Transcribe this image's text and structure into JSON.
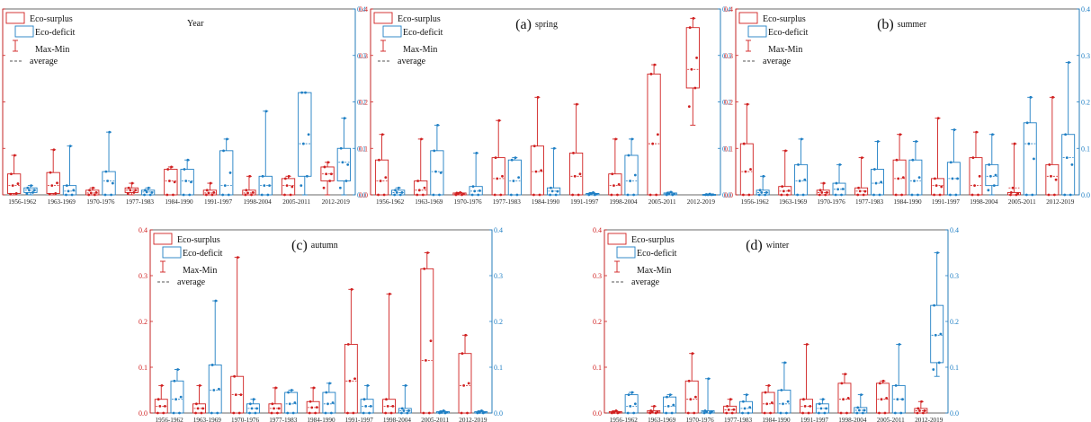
{
  "figure": {
    "red": "#d02020",
    "blue": "#1f7fc4",
    "legend": {
      "surplus": "Eco-surplus",
      "deficit": "Eco-deficit",
      "maxmin": "Max-Min",
      "average": "average"
    },
    "categories": [
      "1956-1962",
      "1963-1969",
      "1970-1976",
      "1977-1983",
      "1984-1990",
      "1991-1997",
      "1998-2004",
      "2005-2011",
      "2012-2019"
    ],
    "left_ticks": [
      "0.0",
      "0.1",
      "0.2",
      "0.3",
      "0.4"
    ],
    "right_ticks": [
      "0.0",
      "0.1",
      "0.2",
      "0.3",
      "0.4"
    ]
  },
  "chart_data": [
    {
      "type": "box",
      "panel_letter": "",
      "title": "Year",
      "categories": [
        "1956-1962",
        "1963-1969",
        "1970-1976",
        "1977-1983",
        "1984-1990",
        "1991-1997",
        "1998-2004",
        "2005-2011",
        "2012-2019"
      ],
      "ylim": [
        0,
        0.4
      ],
      "series": [
        {
          "name": "Eco-surplus",
          "axis": "left",
          "boxes": [
            [
              0,
              0.085,
              0.003,
              0.045,
              0.02
            ],
            [
              0,
              0.097,
              0.003,
              0.048,
              0.02
            ],
            [
              0,
              0.015,
              0.0,
              0.01,
              0.004
            ],
            [
              0,
              0.025,
              0.005,
              0.015,
              0.01
            ],
            [
              0,
              0.06,
              0.0,
              0.055,
              0.03
            ],
            [
              0,
              0.025,
              0.0,
              0.01,
              0.004
            ],
            [
              0,
              0.04,
              0.0,
              0.01,
              0.004
            ],
            [
              0,
              0.04,
              0.0,
              0.035,
              0.02
            ],
            [
              0,
              0.07,
              0.03,
              0.06,
              0.045
            ]
          ]
        },
        {
          "name": "Eco-deficit",
          "axis": "right",
          "boxes": [
            [
              0,
              0.02,
              0.005,
              0.015,
              0.01
            ],
            [
              0,
              0.105,
              0.0,
              0.02,
              0.008
            ],
            [
              0,
              0.135,
              0.0,
              0.05,
              0.03
            ],
            [
              0,
              0.015,
              0.0,
              0.01,
              0.006
            ],
            [
              0,
              0.075,
              0.0,
              0.055,
              0.03
            ],
            [
              0,
              0.12,
              0.0,
              0.095,
              0.02
            ],
            [
              0,
              0.18,
              0.0,
              0.04,
              0.02
            ],
            [
              0,
              0.22,
              0.04,
              0.22,
              0.11
            ],
            [
              0,
              0.165,
              0.03,
              0.1,
              0.07
            ]
          ]
        }
      ]
    },
    {
      "type": "box",
      "panel_letter": "(a)",
      "title": "spring",
      "categories": [
        "1956-1962",
        "1963-1969",
        "1970-1976",
        "1977-1983",
        "1984-1990",
        "1991-1997",
        "1998-2004",
        "2005-2011",
        "2012-2019"
      ],
      "ylim": [
        0,
        0.4
      ],
      "series": [
        {
          "name": "Eco-surplus",
          "axis": "left",
          "boxes": [
            [
              0,
              0.13,
              0.0,
              0.075,
              0.03
            ],
            [
              0,
              0.12,
              0.0,
              0.03,
              0.01
            ],
            [
              0,
              0.005,
              0.0,
              0.004,
              0.002
            ],
            [
              0,
              0.16,
              0.0,
              0.08,
              0.035
            ],
            [
              0,
              0.21,
              0.0,
              0.105,
              0.05
            ],
            [
              0,
              0.195,
              0.0,
              0.09,
              0.04
            ],
            [
              0,
              0.12,
              0.0,
              0.045,
              0.02
            ],
            [
              0,
              0.28,
              0.0,
              0.26,
              0.11
            ],
            [
              0.15,
              0.38,
              0.23,
              0.36,
              0.27
            ]
          ]
        },
        {
          "name": "Eco-deficit",
          "axis": "right",
          "boxes": [
            [
              0,
              0.015,
              0.0,
              0.01,
              0.005
            ],
            [
              0,
              0.15,
              0.0,
              0.095,
              0.05
            ],
            [
              0,
              0.09,
              0.0,
              0.018,
              0.008
            ],
            [
              0,
              0.08,
              0.0,
              0.075,
              0.03
            ],
            [
              0,
              0.1,
              0.0,
              0.015,
              0.008
            ],
            [
              0,
              0.005,
              0.0,
              0.003,
              0.002
            ],
            [
              0,
              0.12,
              0.0,
              0.085,
              0.03
            ],
            [
              0,
              0.006,
              0.0,
              0.004,
              0.002
            ],
            [
              0,
              0.002,
              0.0,
              0.001,
              0.0
            ]
          ]
        }
      ]
    },
    {
      "type": "box",
      "panel_letter": "(b)",
      "title": "summer",
      "categories": [
        "1956-1962",
        "1963-1969",
        "1970-1976",
        "1977-1983",
        "1984-1990",
        "1991-1997",
        "1998-2004",
        "2005-2011",
        "2012-2019"
      ],
      "ylim": [
        0,
        0.4
      ],
      "series": [
        {
          "name": "Eco-surplus",
          "axis": "left",
          "boxes": [
            [
              0,
              0.195,
              0.0,
              0.11,
              0.05
            ],
            [
              0,
              0.095,
              0.0,
              0.018,
              0.008
            ],
            [
              0,
              0.025,
              0.0,
              0.01,
              0.005
            ],
            [
              0,
              0.08,
              0.0,
              0.015,
              0.008
            ],
            [
              0,
              0.13,
              0.0,
              0.075,
              0.035
            ],
            [
              0,
              0.165,
              0.0,
              0.035,
              0.02
            ],
            [
              0,
              0.135,
              0.0,
              0.08,
              0.02
            ],
            [
              0,
              0.11,
              0.0,
              0.005,
              0.015
            ],
            [
              0,
              0.21,
              0.0,
              0.065,
              0.04
            ]
          ]
        },
        {
          "name": "Eco-deficit",
          "axis": "right",
          "boxes": [
            [
              0,
              0.04,
              0.0,
              0.01,
              0.005
            ],
            [
              0,
              0.12,
              0.0,
              0.065,
              0.03
            ],
            [
              0,
              0.065,
              0.0,
              0.025,
              0.012
            ],
            [
              0,
              0.115,
              0.0,
              0.055,
              0.025
            ],
            [
              0,
              0.115,
              0.0,
              0.075,
              0.03
            ],
            [
              0,
              0.14,
              0.0,
              0.07,
              0.035
            ],
            [
              0,
              0.13,
              0.02,
              0.065,
              0.04
            ],
            [
              0,
              0.21,
              0.0,
              0.155,
              0.11
            ],
            [
              0,
              0.285,
              0.0,
              0.13,
              0.08
            ]
          ]
        }
      ]
    },
    {
      "type": "box",
      "panel_letter": "(c)",
      "title": "autumn",
      "categories": [
        "1956-1962",
        "1963-1969",
        "1970-1976",
        "1977-1983",
        "1984-1990",
        "1991-1997",
        "1998-2004",
        "2005-2011",
        "2012-2019"
      ],
      "ylim": [
        0,
        0.4
      ],
      "series": [
        {
          "name": "Eco-surplus",
          "axis": "left",
          "boxes": [
            [
              0,
              0.06,
              0.0,
              0.03,
              0.015
            ],
            [
              0,
              0.06,
              0.0,
              0.02,
              0.01
            ],
            [
              0,
              0.34,
              0.0,
              0.08,
              0.04
            ],
            [
              0,
              0.055,
              0.0,
              0.02,
              0.01
            ],
            [
              0,
              0.055,
              0.0,
              0.025,
              0.012
            ],
            [
              0,
              0.27,
              0.0,
              0.15,
              0.07
            ],
            [
              0,
              0.26,
              0.0,
              0.03,
              0.015
            ],
            [
              0,
              0.35,
              0.0,
              0.315,
              0.115
            ],
            [
              0,
              0.17,
              0.0,
              0.13,
              0.06
            ]
          ]
        },
        {
          "name": "Eco-deficit",
          "axis": "right",
          "boxes": [
            [
              0,
              0.095,
              0.0,
              0.07,
              0.03
            ],
            [
              0,
              0.245,
              0.0,
              0.105,
              0.05
            ],
            [
              0,
              0.03,
              0.0,
              0.02,
              0.01
            ],
            [
              0,
              0.05,
              0.0,
              0.045,
              0.02
            ],
            [
              0,
              0.065,
              0.0,
              0.045,
              0.02
            ],
            [
              0,
              0.06,
              0.0,
              0.03,
              0.015
            ],
            [
              0,
              0.06,
              0.0,
              0.01,
              0.005
            ],
            [
              0,
              0.005,
              0.0,
              0.003,
              0.001
            ],
            [
              0,
              0.005,
              0.0,
              0.003,
              0.001
            ]
          ]
        }
      ]
    },
    {
      "type": "box",
      "panel_letter": "(d)",
      "title": "winter",
      "categories": [
        "1956-1962",
        "1963-1969",
        "1970-1976",
        "1977-1983",
        "1984-1990",
        "1991-1997",
        "1998-2004",
        "2005-2011",
        "2012-2019"
      ],
      "ylim": [
        0,
        0.4
      ],
      "series": [
        {
          "name": "Eco-surplus",
          "axis": "left",
          "boxes": [
            [
              0,
              0.005,
              0.0,
              0.003,
              0.001
            ],
            [
              0,
              0.015,
              0.0,
              0.005,
              0.002
            ],
            [
              0,
              0.13,
              0.0,
              0.07,
              0.03
            ],
            [
              0,
              0.03,
              0.0,
              0.015,
              0.007
            ],
            [
              0,
              0.06,
              0.0,
              0.045,
              0.02
            ],
            [
              0,
              0.15,
              0.0,
              0.03,
              0.015
            ],
            [
              0,
              0.085,
              0.0,
              0.065,
              0.03
            ],
            [
              0,
              0.07,
              0.0,
              0.065,
              0.03
            ],
            [
              0,
              0.025,
              0.0,
              0.01,
              0.005
            ]
          ]
        },
        {
          "name": "Eco-deficit",
          "axis": "right",
          "boxes": [
            [
              0,
              0.045,
              0.0,
              0.04,
              0.015
            ],
            [
              0,
              0.04,
              0.0,
              0.035,
              0.015
            ],
            [
              0,
              0.075,
              0.0,
              0.005,
              0.003
            ],
            [
              0,
              0.04,
              0.0,
              0.025,
              0.01
            ],
            [
              0,
              0.11,
              0.0,
              0.05,
              0.02
            ],
            [
              0,
              0.03,
              0.0,
              0.02,
              0.01
            ],
            [
              0,
              0.04,
              0.0,
              0.012,
              0.006
            ],
            [
              0,
              0.15,
              0.0,
              0.06,
              0.03
            ],
            [
              0.08,
              0.35,
              0.11,
              0.235,
              0.17
            ]
          ]
        }
      ]
    }
  ]
}
